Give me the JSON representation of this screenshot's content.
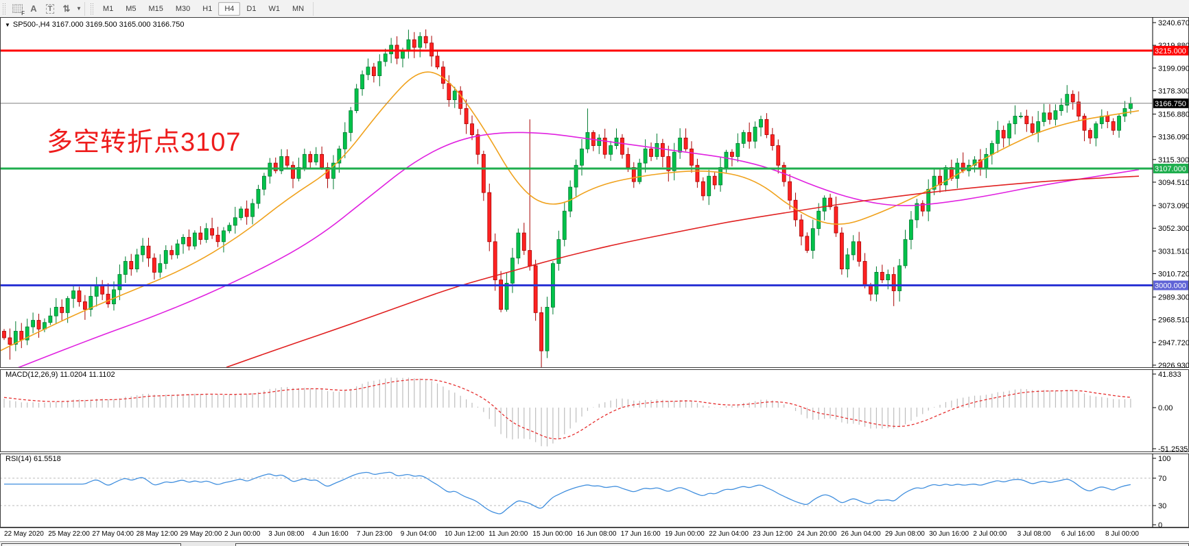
{
  "toolbar": {
    "tools": [
      {
        "id": "indicators-grid-tool",
        "glyph": "grid",
        "badge": "F"
      },
      {
        "id": "text-tool",
        "glyph": "A"
      },
      {
        "id": "label-tool",
        "glyph": "T"
      },
      {
        "id": "arrows-tool",
        "glyph": "⇅"
      }
    ],
    "dropdown_caret": "▼",
    "timeframes": [
      "M1",
      "M5",
      "M15",
      "M30",
      "H1",
      "H4",
      "D1",
      "W1",
      "MN"
    ],
    "active_timeframe": "H4"
  },
  "chart": {
    "expand_triangle": "▼",
    "symbol_period": "SP500-,H4",
    "ohlc_text": "3167.000 3169.500 3165.000 3166.750",
    "annotation": "多空转折点3107"
  },
  "chart_data": {
    "type": "candlestick",
    "symbol": "SP500-",
    "timeframe": "H4",
    "ohlc_display": {
      "open": "3167.000",
      "high": "3169.500",
      "low": "3165.000",
      "close": "3166.750"
    },
    "price_axis": [
      "3240.670",
      "3219.880",
      "3199.090",
      "3178.300",
      "3156.880",
      "3136.090",
      "3115.300",
      "3094.510",
      "3073.090",
      "3052.300",
      "3031.510",
      "3010.720",
      "2989.300",
      "2968.510",
      "2947.720",
      "2926.930"
    ],
    "time_axis": [
      "22 May 2020",
      "25 May 22:00",
      "27 May 04:00",
      "28 May 12:00",
      "29 May 20:00",
      "2 Jun 00:00",
      "3 Jun 08:00",
      "4 Jun 16:00",
      "7 Jun 23:00",
      "9 Jun 04:00",
      "10 Jun 12:00",
      "11 Jun 20:00",
      "15 Jun 00:00",
      "16 Jun 08:00",
      "17 Jun 16:00",
      "19 Jun 00:00",
      "22 Jun 04:00",
      "23 Jun 12:00",
      "24 Jun 20:00",
      "26 Jun 04:00",
      "29 Jun 08:00",
      "30 Jun 16:00",
      "2 Jul 00:00",
      "3 Jul 08:00",
      "6 Jul 16:00",
      "8 Jul 00:00"
    ],
    "closes": [
      2952,
      2946,
      2958,
      2950,
      2962,
      2968,
      2960,
      2966,
      2972,
      2980,
      2975,
      2988,
      2995,
      2985,
      2978,
      2990,
      3000,
      2992,
      2983,
      2996,
      3010,
      3022,
      3015,
      3028,
      3036,
      3025,
      3012,
      3020,
      3032,
      3028,
      3038,
      3044,
      3036,
      3048,
      3042,
      3052,
      3046,
      3040,
      3050,
      3055,
      3062,
      3070,
      3063,
      3075,
      3088,
      3100,
      3112,
      3105,
      3118,
      3110,
      3098,
      3108,
      3120,
      3113,
      3120,
      3108,
      3098,
      3112,
      3125,
      3140,
      3160,
      3180,
      3193,
      3200,
      3192,
      3205,
      3212,
      3220,
      3208,
      3215,
      3225,
      3218,
      3228,
      3222,
      3210,
      3200,
      3185,
      3170,
      3178,
      3162,
      3148,
      3138,
      3120,
      3085,
      3040,
      3005,
      2978,
      3002,
      3025,
      3048,
      3032,
      3018,
      2975,
      2940,
      2980,
      3020,
      3042,
      3068,
      3090,
      3110,
      3125,
      3140,
      3128,
      3135,
      3120,
      3128,
      3135,
      3120,
      3108,
      3095,
      3112,
      3125,
      3118,
      3130,
      3118,
      3105,
      3122,
      3135,
      3125,
      3110,
      3095,
      3082,
      3100,
      3092,
      3108,
      3122,
      3118,
      3130,
      3140,
      3132,
      3145,
      3152,
      3138,
      3128,
      3110,
      3095,
      3078,
      3060,
      3045,
      3032,
      3052,
      3068,
      3080,
      3072,
      3048,
      3015,
      3028,
      3040,
      3022,
      3000,
      2992,
      3012,
      3005,
      3010,
      2995,
      3018,
      3042,
      3060,
      3075,
      3068,
      3088,
      3100,
      3092,
      3108,
      3098,
      3112,
      3105,
      3110,
      3115,
      3108,
      3120,
      3130,
      3142,
      3135,
      3148,
      3155,
      3155,
      3148,
      3140,
      3150,
      3158,
      3152,
      3160,
      3165,
      3175,
      3168,
      3155,
      3142,
      3135,
      3148,
      3155,
      3150,
      3142,
      3155,
      3162,
      3166.75
    ],
    "first_open": 2958,
    "wick_overrides": {
      "1": {
        "lo": 2932
      },
      "71": {
        "hi": 3232
      },
      "91": {
        "hi": 3152
      },
      "93": {
        "lo": 2923
      },
      "101": {
        "hi": 3162
      },
      "154": {
        "lo": 2981
      }
    },
    "up_color": "#00c24a",
    "up_stroke": "#007a30",
    "down_color": "#ff2222",
    "down_stroke": "#a80000",
    "moving_averages": [
      {
        "name": "ma-fast",
        "color": "#f0a21d",
        "points": [
          [
            0,
            2940
          ],
          [
            90,
            2968
          ],
          [
            180,
            2992
          ],
          [
            270,
            3015
          ],
          [
            350,
            3045
          ],
          [
            420,
            3080
          ],
          [
            490,
            3108
          ],
          [
            560,
            3165
          ],
          [
            610,
            3198
          ],
          [
            650,
            3192
          ],
          [
            700,
            3150
          ],
          [
            760,
            3085
          ],
          [
            810,
            3070
          ],
          [
            870,
            3092
          ],
          [
            950,
            3102
          ],
          [
            1030,
            3106
          ],
          [
            1100,
            3098
          ],
          [
            1160,
            3068
          ],
          [
            1220,
            3052
          ],
          [
            1290,
            3068
          ],
          [
            1370,
            3092
          ],
          [
            1450,
            3122
          ],
          [
            1540,
            3148
          ],
          [
            1660,
            3160
          ]
        ]
      },
      {
        "name": "ma-medium",
        "color": "#e020e0",
        "points": [
          [
            0,
            2918
          ],
          [
            120,
            2948
          ],
          [
            240,
            2975
          ],
          [
            360,
            3008
          ],
          [
            460,
            3042
          ],
          [
            540,
            3082
          ],
          [
            600,
            3112
          ],
          [
            660,
            3132
          ],
          [
            720,
            3140
          ],
          [
            790,
            3140
          ],
          [
            860,
            3134
          ],
          [
            930,
            3128
          ],
          [
            1000,
            3122
          ],
          [
            1070,
            3116
          ],
          [
            1130,
            3106
          ],
          [
            1190,
            3090
          ],
          [
            1250,
            3078
          ],
          [
            1310,
            3072
          ],
          [
            1370,
            3075
          ],
          [
            1440,
            3082
          ],
          [
            1520,
            3092
          ],
          [
            1660,
            3106
          ]
        ]
      },
      {
        "name": "ma-slow",
        "color": "#e02020",
        "points": [
          [
            330,
            2925
          ],
          [
            420,
            2945
          ],
          [
            500,
            2962
          ],
          [
            580,
            2980
          ],
          [
            660,
            2998
          ],
          [
            740,
            3012
          ],
          [
            820,
            3026
          ],
          [
            900,
            3038
          ],
          [
            980,
            3048
          ],
          [
            1060,
            3058
          ],
          [
            1140,
            3066
          ],
          [
            1220,
            3074
          ],
          [
            1300,
            3081
          ],
          [
            1380,
            3087
          ],
          [
            1460,
            3092
          ],
          [
            1560,
            3097
          ],
          [
            1660,
            3100
          ]
        ]
      }
    ],
    "hlines": [
      {
        "price": 3215.0,
        "label": "3215.000",
        "color": "#ff0000",
        "badge": "#ff0000",
        "width": 3
      },
      {
        "price": 3107.0,
        "label": "3107.000",
        "color": "#1fae4e",
        "badge": "#1fae4e",
        "width": 3
      },
      {
        "price": 3000.0,
        "label": "3000.000",
        "color": "#2b35d5",
        "badge": "#5f63d6",
        "width": 3
      }
    ],
    "current_price": {
      "price": 3166.75,
      "label": "3166.750",
      "color": "#808080",
      "badge": "#000000",
      "width": 1
    },
    "macd": {
      "label": "MACD(12,26,9) 11.0204 11.1102",
      "fast": 12,
      "slow": 26,
      "signal_period": 9,
      "macd_value": 11.0204,
      "signal_value": 11.1102,
      "axis": [
        "41.833",
        "0.00",
        "-51.2535"
      ],
      "hist_color": "#bdbdbd",
      "signal_color": "#e62e2e"
    },
    "rsi": {
      "label": "RSI(14) 61.5518",
      "period": 14,
      "value": 61.5518,
      "levels": [
        70,
        30
      ],
      "axis": [
        "100",
        "70",
        "30",
        "0"
      ],
      "line_color": "#3f8ede"
    }
  }
}
